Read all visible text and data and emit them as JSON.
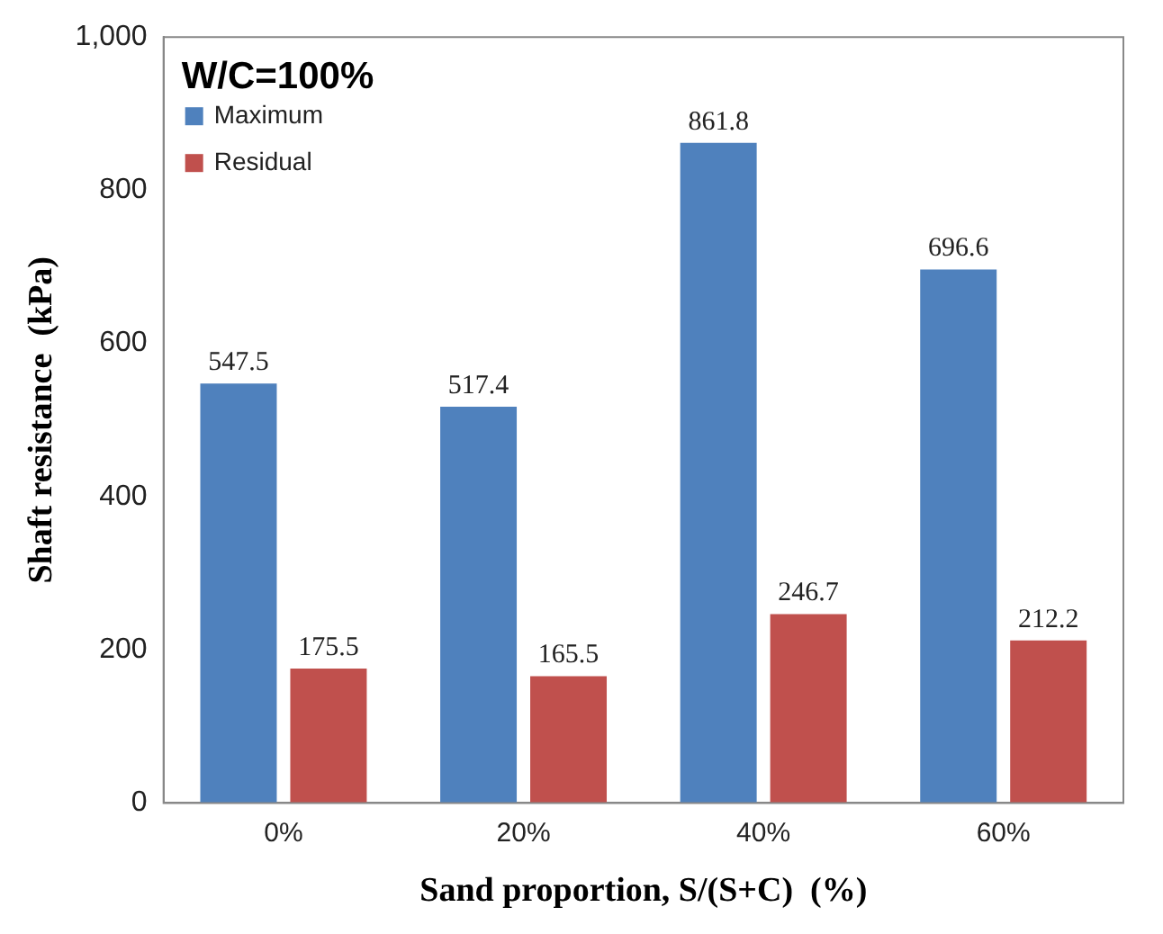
{
  "chart_data": {
    "type": "bar",
    "categories": [
      "0%",
      "20%",
      "40%",
      "60%"
    ],
    "series": [
      {
        "name": "Maximum",
        "color": "#4f81bd",
        "values": [
          547.5,
          517.4,
          861.8,
          696.6
        ]
      },
      {
        "name": "Residual",
        "color": "#c0504d",
        "values": [
          175.5,
          165.5,
          246.7,
          212.2
        ]
      }
    ],
    "xlabel": "Sand proportion, S/(S+C)  (%)",
    "ylabel": "Shaft resistance  (kPa)",
    "annotations": [
      "W/C=100%"
    ],
    "ylim": [
      0,
      1000
    ],
    "yticks": [
      0,
      200,
      400,
      600,
      800,
      {
        "value": 1000,
        "label": "1,000"
      }
    ],
    "grid": false,
    "legend": "top left",
    "data_labels": true
  }
}
